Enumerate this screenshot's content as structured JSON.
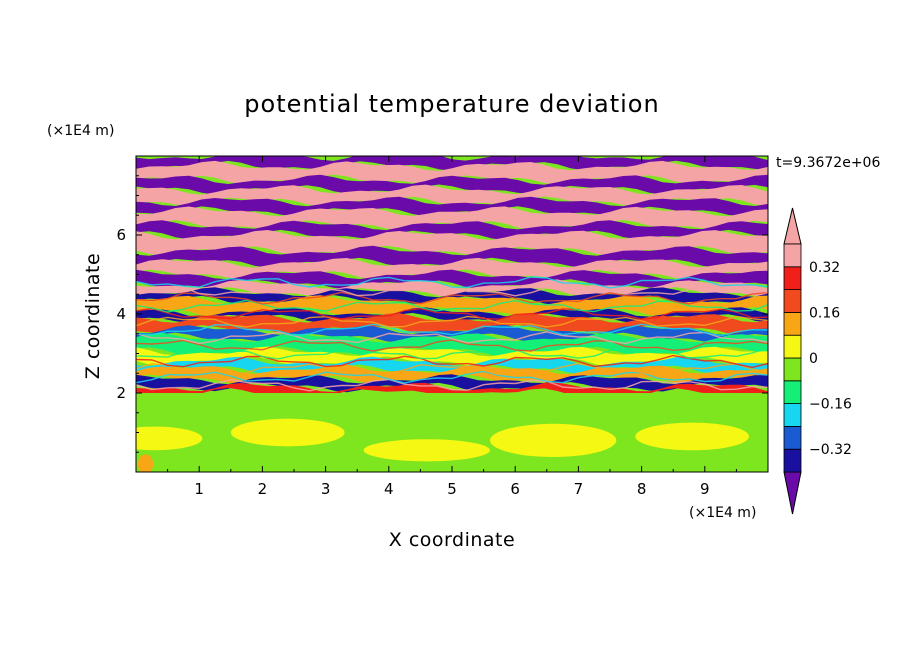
{
  "chart_data": {
    "type": "heatmap",
    "title": "potential temperature deviation",
    "xlabel": "X coordinate",
    "ylabel": "Z coordinate",
    "x_unit": "(×1E4 m)",
    "y_unit": "(×1E4 m)",
    "time_label": "t=9.3672e+06",
    "xlim": [
      0,
      10
    ],
    "ylim": [
      0,
      8
    ],
    "x_ticks": [
      1,
      2,
      3,
      4,
      5,
      6,
      7,
      8,
      9
    ],
    "y_ticks": [
      2,
      4,
      6
    ],
    "x_tick_labels": [
      "1",
      "2",
      "3",
      "4",
      "5",
      "6",
      "7",
      "8",
      "9"
    ],
    "y_tick_labels": [
      "2",
      "4",
      "6"
    ],
    "colorbar": {
      "levels": [
        -0.4,
        -0.32,
        -0.24,
        -0.16,
        -0.08,
        0,
        0.08,
        0.16,
        0.24,
        0.32,
        0.4
      ],
      "tick_values": [
        0.32,
        0.16,
        0,
        -0.16,
        -0.32
      ],
      "tick_labels": [
        "0.32",
        "0.16",
        "0",
        "−0.16",
        "−0.32"
      ],
      "colors": [
        "#6a0aa8",
        "#1a10a0",
        "#1a5ad2",
        "#16d6f0",
        "#14ef78",
        "#7ee61e",
        "#f4f812",
        "#f9a616",
        "#f04a1e",
        "#f11f1a",
        "#f4a4a4"
      ],
      "over_color": "#f4a4a4",
      "under_color": "#6a0aa8"
    },
    "bands": [
      {
        "z": [
          7.75,
          8.0
        ],
        "value": -0.4
      },
      {
        "z": [
          7.4,
          7.75
        ],
        "value": 0.4
      },
      {
        "z": [
          7.15,
          7.4
        ],
        "value": -0.4
      },
      {
        "z": [
          6.85,
          7.15
        ],
        "value": 0.4
      },
      {
        "z": [
          6.6,
          6.85
        ],
        "value": -0.4
      },
      {
        "z": [
          6.25,
          6.6
        ],
        "value": 0.4
      },
      {
        "z": [
          6.0,
          6.25
        ],
        "value": -0.4
      },
      {
        "z": [
          5.6,
          6.0
        ],
        "value": 0.4
      },
      {
        "z": [
          5.3,
          5.6
        ],
        "value": -0.4
      },
      {
        "z": [
          5.0,
          5.3
        ],
        "value": 0.4
      },
      {
        "z": [
          4.75,
          5.0
        ],
        "value": -0.4
      },
      {
        "z": [
          4.55,
          4.75
        ],
        "value": 0.36
      },
      {
        "z": [
          4.35,
          4.55
        ],
        "value": -0.36
      },
      {
        "z": [
          4.05,
          4.35
        ],
        "value": 0.1
      },
      {
        "z": [
          3.9,
          4.05
        ],
        "value": -0.36
      },
      {
        "z": [
          3.6,
          3.9
        ],
        "value": 0.2
      },
      {
        "z": [
          3.4,
          3.6
        ],
        "value": -0.3
      },
      {
        "z": [
          3.05,
          3.4
        ],
        "value": -0.1
      },
      {
        "z": [
          2.8,
          3.05
        ],
        "value": 0.05
      },
      {
        "z": [
          2.6,
          2.8
        ],
        "value": -0.2
      },
      {
        "z": [
          2.35,
          2.6
        ],
        "value": 0.12
      },
      {
        "z": [
          2.15,
          2.35
        ],
        "value": -0.36
      },
      {
        "z": [
          2.0,
          2.15
        ],
        "value": 0.3
      },
      {
        "z": [
          0.0,
          2.0
        ],
        "value": -0.02
      }
    ],
    "patches": [
      {
        "x": 0.3,
        "z": 0.85,
        "rx": 0.75,
        "rz": 0.3,
        "value": 0.03
      },
      {
        "x": 2.4,
        "z": 1.0,
        "rx": 0.9,
        "rz": 0.35,
        "value": 0.03
      },
      {
        "x": 4.6,
        "z": 0.55,
        "rx": 1.0,
        "rz": 0.28,
        "value": 0.03
      },
      {
        "x": 6.6,
        "z": 0.8,
        "rx": 1.0,
        "rz": 0.42,
        "value": 0.03
      },
      {
        "x": 8.8,
        "z": 0.9,
        "rx": 0.9,
        "rz": 0.35,
        "value": 0.03
      },
      {
        "x": 0.15,
        "z": 0.2,
        "rx": 0.12,
        "rz": 0.25,
        "value": 0.12
      }
    ]
  }
}
